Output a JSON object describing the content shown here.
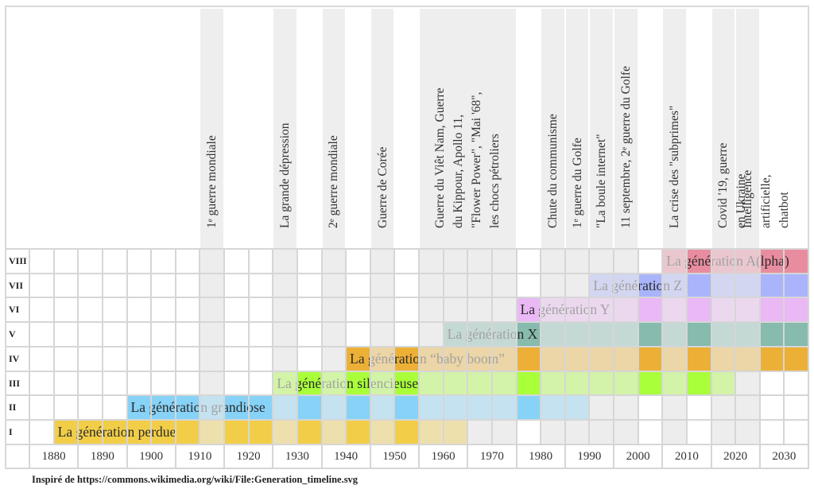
{
  "chart_data": {
    "type": "timeline",
    "title": "",
    "x_range": [
      1875,
      2035
    ],
    "x_step": 5,
    "x_ticks": [
      1880,
      1890,
      1900,
      1910,
      1920,
      1930,
      1940,
      1950,
      1960,
      1970,
      1980,
      1990,
      2000,
      2010,
      2020,
      2030
    ],
    "row_labels": [
      "I",
      "II",
      "III",
      "IV",
      "V",
      "VI",
      "VII",
      "VIII"
    ],
    "generations": [
      {
        "row": "I",
        "name": "La génération perdue",
        "start": 1880,
        "end": 1965,
        "color": "#F2CE48"
      },
      {
        "row": "II",
        "name": "La génération grandiose",
        "start": 1895,
        "end": 1990,
        "color": "#87D2F7"
      },
      {
        "row": "III",
        "name": "La génération silencieuse",
        "start": 1925,
        "end": 2020,
        "color": "#A8FF3A"
      },
      {
        "row": "IV",
        "name": "La génération “baby boom”",
        "start": 1940,
        "end": 2035,
        "color": "#EDB036"
      },
      {
        "row": "V",
        "name": "La génération X",
        "start": 1960,
        "end": 2035,
        "color": "#86BBAE"
      },
      {
        "row": "VI",
        "name": "La génération Y",
        "start": 1975,
        "end": 2035,
        "color": "#EAB8F5"
      },
      {
        "row": "VII",
        "name": "La génération Z",
        "start": 1990,
        "end": 2035,
        "color": "#AAB4FA"
      },
      {
        "row": "VIII",
        "name": "La génération A(lpha)",
        "start": 2005,
        "end": 2035,
        "color": "#E88DA0"
      }
    ],
    "events": [
      {
        "label": "1ᵉ guerre mondiale",
        "start": 1910,
        "end": 1915
      },
      {
        "label": "La grande dépression",
        "start": 1925,
        "end": 1930
      },
      {
        "label": "2ᵉ guerre mondiale",
        "start": 1935,
        "end": 1940
      },
      {
        "label": "Guerre de Corée",
        "start": 1945,
        "end": 1950
      },
      {
        "label": "Guerre du Viêt Nam, Guerre\ndu Kippour, Apollo 11,\n\"Flower Power\", \"Mai '68\",\nles chocs pétroliers",
        "start": 1955,
        "end": 1975
      },
      {
        "label": "Chute du communisme",
        "start": 1980,
        "end": 1985
      },
      {
        "label": "1ᵉ guerre du Golfe",
        "start": 1985,
        "end": 1990
      },
      {
        "label": "\"La boule internet\"",
        "start": 1990,
        "end": 1995
      },
      {
        "label": "11 septembre, 2ᵉ guerre du Golfe",
        "start": 1995,
        "end": 2000
      },
      {
        "label": "La crise des \"subprimes\"",
        "start": 2005,
        "end": 2010
      },
      {
        "label": "Covid '19, guerre en Ukraine",
        "start": 2015,
        "end": 2020
      },
      {
        "label": "Intelligence artificielle, chatbot",
        "start": 2020,
        "end": 2025
      }
    ],
    "event_color": "#EEEEEE",
    "grid": true
  },
  "footer": "Inspiré de https://commons.wikimedia.org/wiki/File:Generation_timeline.svg"
}
